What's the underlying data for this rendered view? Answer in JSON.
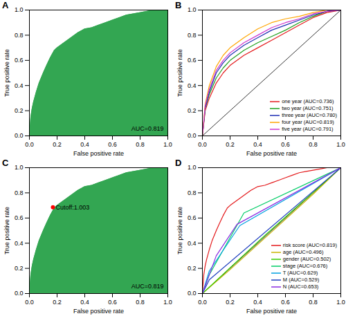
{
  "chart_data": [
    {
      "type": "area",
      "title": "A",
      "x_label": "False positive rate",
      "y_label": "True positive rate",
      "xlim": [
        0,
        1
      ],
      "ylim": [
        0,
        1
      ],
      "xticks": [
        {
          "value": 0,
          "label": "0.0"
        },
        {
          "value": 0.2,
          "label": "0.2"
        },
        {
          "value": 0.4,
          "label": "0.4"
        },
        {
          "value": 0.6,
          "label": "0.6"
        },
        {
          "value": 0.8,
          "label": "0.8"
        },
        {
          "value": 1,
          "label": "1.0"
        }
      ],
      "yticks": [
        {
          "value": 0,
          "label": "0.0"
        },
        {
          "value": 0.2,
          "label": "0.2"
        },
        {
          "value": 0.4,
          "label": "0.4"
        },
        {
          "value": 0.6,
          "label": "0.6"
        },
        {
          "value": 0.8,
          "label": "0.8"
        },
        {
          "value": 1,
          "label": "1.0"
        }
      ],
      "x": [
        0,
        0.01,
        0.02,
        0.03,
        0.05,
        0.07,
        0.1,
        0.12,
        0.15,
        0.18,
        0.2,
        0.25,
        0.3,
        0.35,
        0.4,
        0.45,
        0.5,
        0.55,
        0.6,
        0.65,
        0.7,
        0.75,
        0.8,
        0.85,
        0.9,
        0.95,
        1
      ],
      "values": [
        0,
        0.15,
        0.22,
        0.27,
        0.35,
        0.42,
        0.5,
        0.55,
        0.62,
        0.68,
        0.7,
        0.74,
        0.78,
        0.82,
        0.85,
        0.86,
        0.88,
        0.9,
        0.92,
        0.94,
        0.96,
        0.97,
        0.98,
        0.99,
        1,
        1,
        1
      ],
      "color": "#33a652",
      "annotations": [
        "AUC=0.819"
      ]
    },
    {
      "type": "line",
      "title": "B",
      "x_label": "False positive rate",
      "y_label": "True positive rate",
      "xlim": [
        0,
        1
      ],
      "ylim": [
        0,
        1
      ],
      "xticks": [
        {
          "value": 0,
          "label": "0.0"
        },
        {
          "value": 0.2,
          "label": "0.2"
        },
        {
          "value": 0.4,
          "label": "0.4"
        },
        {
          "value": 0.6,
          "label": "0.6"
        },
        {
          "value": 0.8,
          "label": "0.8"
        },
        {
          "value": 1,
          "label": "1.0"
        }
      ],
      "yticks": [
        {
          "value": 0,
          "label": "0.0"
        },
        {
          "value": 0.2,
          "label": "0.2"
        },
        {
          "value": 0.4,
          "label": "0.4"
        },
        {
          "value": 0.6,
          "label": "0.6"
        },
        {
          "value": 0.8,
          "label": "0.8"
        },
        {
          "value": 1,
          "label": "1.0"
        }
      ],
      "legend": "bottom-right",
      "series": [
        {
          "name": "one year (AUC=0.736)",
          "color": "#e41a1c",
          "x": [
            0,
            0.02,
            0.05,
            0.1,
            0.15,
            0.2,
            0.3,
            0.4,
            0.5,
            0.6,
            0.7,
            0.8,
            0.9,
            1
          ],
          "values": [
            0,
            0.2,
            0.3,
            0.42,
            0.5,
            0.56,
            0.64,
            0.7,
            0.76,
            0.82,
            0.88,
            0.94,
            0.98,
            1
          ]
        },
        {
          "name": "two year (AUC=0.751)",
          "color": "#1fa01f",
          "x": [
            0,
            0.02,
            0.05,
            0.1,
            0.15,
            0.2,
            0.3,
            0.4,
            0.5,
            0.6,
            0.7,
            0.8,
            0.9,
            1
          ],
          "values": [
            0,
            0.22,
            0.33,
            0.46,
            0.54,
            0.6,
            0.68,
            0.74,
            0.79,
            0.84,
            0.9,
            0.95,
            0.99,
            1
          ]
        },
        {
          "name": "three year (AUC=0.780)",
          "color": "#1f2fb4",
          "x": [
            0,
            0.02,
            0.05,
            0.1,
            0.15,
            0.2,
            0.3,
            0.4,
            0.5,
            0.6,
            0.7,
            0.8,
            0.9,
            1
          ],
          "values": [
            0,
            0.22,
            0.35,
            0.5,
            0.58,
            0.64,
            0.72,
            0.78,
            0.84,
            0.88,
            0.92,
            0.96,
            0.99,
            1
          ]
        },
        {
          "name": "four year (AUC=0.819)",
          "color": "#ffa500",
          "x": [
            0,
            0.02,
            0.05,
            0.1,
            0.15,
            0.2,
            0.3,
            0.4,
            0.5,
            0.6,
            0.7,
            0.8,
            0.9,
            1
          ],
          "values": [
            0,
            0.25,
            0.4,
            0.55,
            0.64,
            0.7,
            0.78,
            0.85,
            0.9,
            0.93,
            0.95,
            0.98,
            1,
            1
          ]
        },
        {
          "name": "five year (AUC=0.791)",
          "color": "#cc33cc",
          "x": [
            0,
            0.02,
            0.05,
            0.1,
            0.15,
            0.2,
            0.3,
            0.4,
            0.5,
            0.6,
            0.7,
            0.8,
            0.9,
            1
          ],
          "values": [
            0,
            0.24,
            0.37,
            0.52,
            0.6,
            0.66,
            0.74,
            0.8,
            0.86,
            0.9,
            0.93,
            0.97,
            0.99,
            1
          ]
        }
      ]
    },
    {
      "type": "area",
      "title": "C",
      "x_label": "False positive rate",
      "y_label": "True positive rate",
      "xlim": [
        0,
        1
      ],
      "ylim": [
        0,
        1
      ],
      "xticks": [
        {
          "value": 0,
          "label": "0.0"
        },
        {
          "value": 0.2,
          "label": "0.2"
        },
        {
          "value": 0.4,
          "label": "0.4"
        },
        {
          "value": 0.6,
          "label": "0.6"
        },
        {
          "value": 0.8,
          "label": "0.8"
        },
        {
          "value": 1,
          "label": "1.0"
        }
      ],
      "yticks": [
        {
          "value": 0,
          "label": "0.0"
        },
        {
          "value": 0.2,
          "label": "0.2"
        },
        {
          "value": 0.4,
          "label": "0.4"
        },
        {
          "value": 0.6,
          "label": "0.6"
        },
        {
          "value": 0.8,
          "label": "0.8"
        },
        {
          "value": 1,
          "label": "1.0"
        }
      ],
      "x": [
        0,
        0.01,
        0.02,
        0.03,
        0.05,
        0.07,
        0.1,
        0.12,
        0.15,
        0.18,
        0.2,
        0.25,
        0.3,
        0.35,
        0.4,
        0.45,
        0.5,
        0.55,
        0.6,
        0.65,
        0.7,
        0.75,
        0.8,
        0.85,
        0.9,
        0.95,
        1
      ],
      "values": [
        0,
        0.15,
        0.22,
        0.27,
        0.35,
        0.42,
        0.5,
        0.55,
        0.62,
        0.68,
        0.7,
        0.74,
        0.78,
        0.82,
        0.85,
        0.86,
        0.88,
        0.9,
        0.92,
        0.94,
        0.96,
        0.97,
        0.98,
        0.99,
        1,
        1,
        1
      ],
      "color": "#33a652",
      "annotations": [
        "AUC=0.819"
      ],
      "cutoff": {
        "x": 0.17,
        "y": 0.685,
        "label": "Cutoff:1.003",
        "color": "#ff0000"
      }
    },
    {
      "type": "line",
      "title": "D",
      "x_label": "False positive rate",
      "y_label": "True positive rate",
      "xlim": [
        0,
        1
      ],
      "ylim": [
        0,
        1
      ],
      "xticks": [
        {
          "value": 0,
          "label": "0.0"
        },
        {
          "value": 0.2,
          "label": "0.2"
        },
        {
          "value": 0.4,
          "label": "0.4"
        },
        {
          "value": 0.6,
          "label": "0.6"
        },
        {
          "value": 0.8,
          "label": "0.8"
        },
        {
          "value": 1,
          "label": "1.0"
        }
      ],
      "yticks": [
        {
          "value": 0,
          "label": "0.0"
        },
        {
          "value": 0.2,
          "label": "0.2"
        },
        {
          "value": 0.4,
          "label": "0.4"
        },
        {
          "value": 0.6,
          "label": "0.6"
        },
        {
          "value": 0.8,
          "label": "0.8"
        },
        {
          "value": 1,
          "label": "1.0"
        }
      ],
      "legend": "bottom-right",
      "series": [
        {
          "name": "risk score (AUC=0.819)",
          "color": "#e41a1c",
          "x": [
            0,
            0.01,
            0.02,
            0.03,
            0.05,
            0.07,
            0.1,
            0.12,
            0.15,
            0.18,
            0.2,
            0.25,
            0.3,
            0.35,
            0.4,
            0.45,
            0.5,
            0.55,
            0.6,
            0.65,
            0.7,
            0.75,
            0.8,
            0.85,
            0.9,
            0.95,
            1
          ],
          "values": [
            0,
            0.15,
            0.22,
            0.27,
            0.35,
            0.42,
            0.5,
            0.55,
            0.62,
            0.68,
            0.7,
            0.74,
            0.78,
            0.82,
            0.85,
            0.86,
            0.88,
            0.9,
            0.92,
            0.94,
            0.96,
            0.97,
            0.98,
            0.99,
            1,
            1,
            1
          ]
        },
        {
          "name": "age (AUC=0.496)",
          "color": "#c8b400",
          "x": [
            0,
            0.2,
            0.5,
            0.8,
            1
          ],
          "values": [
            0,
            0.19,
            0.49,
            0.79,
            1
          ]
        },
        {
          "name": "gender (AUC=0.502)",
          "color": "#33cc00",
          "x": [
            0,
            0.45,
            1
          ],
          "values": [
            0,
            0.46,
            1
          ]
        },
        {
          "name": "stage (AUC=0.676)",
          "color": "#00cc66",
          "x": [
            0,
            0.05,
            0.3,
            1
          ],
          "values": [
            0,
            0.15,
            0.64,
            1
          ]
        },
        {
          "name": "T (AUC=0.629)",
          "color": "#00a0e0",
          "x": [
            0,
            0.05,
            0.27,
            1
          ],
          "values": [
            0,
            0.18,
            0.54,
            1
          ]
        },
        {
          "name": "M (AUC=0.529)",
          "color": "#1f3fbf",
          "x": [
            0,
            0.05,
            1
          ],
          "values": [
            0,
            0.11,
            1
          ]
        },
        {
          "name": "N (AUC=0.653)",
          "color": "#8a2be2",
          "x": [
            0,
            0.1,
            0.25,
            1
          ],
          "values": [
            0,
            0.3,
            0.55,
            1
          ]
        }
      ]
    }
  ]
}
